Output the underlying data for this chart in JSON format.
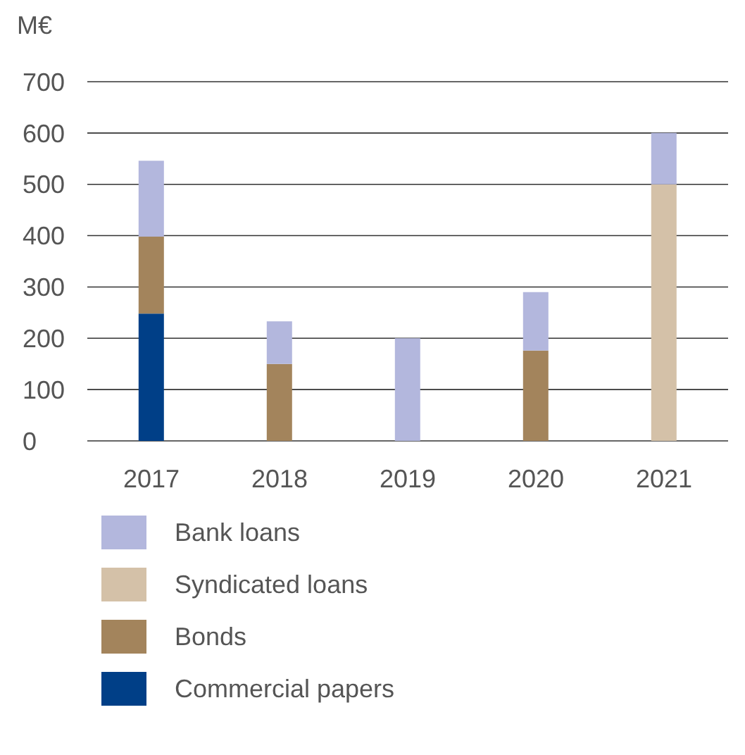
{
  "chart_data": {
    "type": "bar",
    "stacked": true,
    "ylabel": "M€",
    "categories": [
      "2017",
      "2018",
      "2019",
      "2020",
      "2021"
    ],
    "series": [
      {
        "name": "Commercial papers",
        "color": "#003f87",
        "values": [
          248,
          null,
          null,
          null,
          null
        ]
      },
      {
        "name": "Bonds",
        "color": "#a3845c",
        "values": [
          150,
          150,
          null,
          176,
          null
        ]
      },
      {
        "name": "Syndicated loans",
        "color": "#d4c1a8",
        "values": [
          null,
          null,
          null,
          null,
          500
        ]
      },
      {
        "name": "Bank loans",
        "color": "#b3b7dd",
        "values": [
          148,
          83,
          200,
          114,
          100
        ]
      }
    ],
    "ylim": [
      0,
      700
    ],
    "yticks": [
      0,
      100,
      200,
      300,
      400,
      500,
      600,
      700
    ],
    "grid": "y",
    "legend": "bottom"
  }
}
